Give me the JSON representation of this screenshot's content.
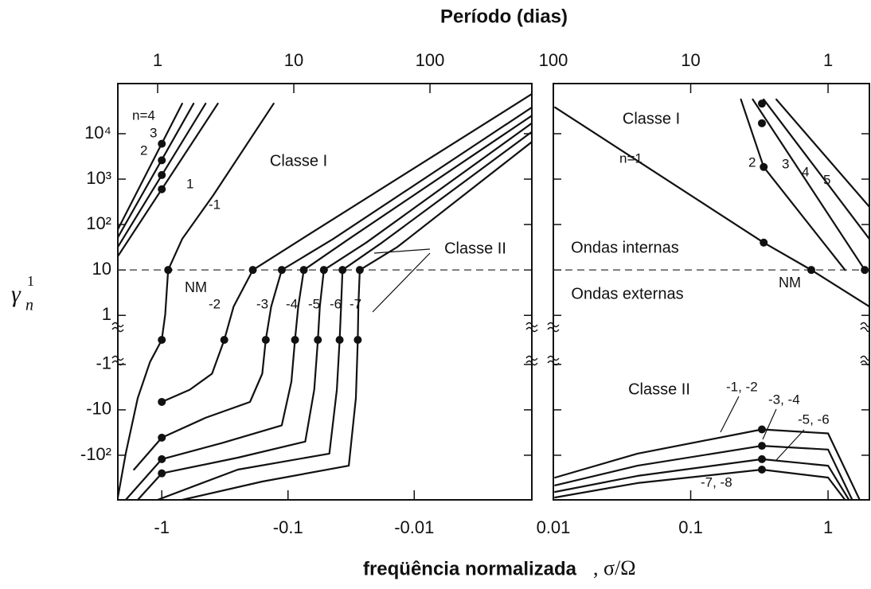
{
  "chart_data": [
    {
      "type": "line",
      "title": "Período (dias)",
      "xlabel": "freqüência normalizada",
      "xlabel_symbol": ", σ/Ω",
      "ylabel": {
        "symbol": "γ",
        "sub": "n",
        "sup": "1"
      },
      "xscale": "log",
      "yscale": "symlog",
      "x2scale": "log",
      "xlim": [
        -2.23,
        -0.00117
      ],
      "xticks": [
        -1,
        -0.1,
        -0.01
      ],
      "x2lim": [
        0.51,
        560
      ],
      "x2ticks": [
        1,
        10,
        100
      ],
      "ylim": [
        -960,
        127000
      ],
      "yticks": [
        {
          "value": 10000,
          "label": "10⁴"
        },
        {
          "value": 1000,
          "label": "10³"
        },
        {
          "value": 100,
          "label": "10²"
        },
        10,
        1,
        -1,
        -10,
        {
          "value": -100,
          "label": "-10²"
        }
      ],
      "hline": 10,
      "annotations": [
        "Classe I",
        "Classe II",
        "NM"
      ],
      "series": [
        {
          "name": "n=4",
          "color": "#111111",
          "x": [
            -2.23,
            -0.69
          ],
          "values": [
            78,
            46000
          ]
        },
        {
          "name": "3",
          "color": "#111111",
          "x": [
            -2.23,
            -0.56
          ],
          "values": [
            52,
            46000
          ]
        },
        {
          "name": "2",
          "color": "#111111",
          "x": [
            -2.23,
            -0.45
          ],
          "values": [
            32,
            46000
          ]
        },
        {
          "name": "1",
          "color": "#111111",
          "x": [
            -2.23,
            -0.36
          ],
          "values": [
            20,
            46000
          ]
        },
        {
          "name": "-1",
          "color": "#111111",
          "x": [
            -2.23,
            -1.93,
            -1.55,
            -1.24,
            -1.0,
            -0.94,
            -0.89,
            -0.69,
            -0.39,
            -0.13
          ],
          "values": [
            -850,
            -92,
            -5.5,
            -0.9,
            0,
            1.04,
            10,
            48,
            445,
            46000
          ]
        },
        {
          "name": "-2",
          "color": "#111111",
          "x": [
            -1,
            -0.6,
            -0.4,
            -0.32,
            -0.27,
            -0.19,
            -0.078,
            -0.00117
          ],
          "values": [
            -6.7,
            -3.6,
            -1.6,
            0,
            1.56,
            10,
            48,
            75000
          ]
        },
        {
          "name": "-3",
          "color": "#111111",
          "x": [
            -1.66,
            -1,
            -0.45,
            -0.2,
            -0.16,
            -0.15,
            -0.136,
            -0.112,
            -0.044,
            -0.00117
          ],
          "values": [
            -207,
            -41,
            -15,
            -6.7,
            -1.6,
            0,
            1.56,
            10,
            48,
            38000
          ]
        },
        {
          "name": "-4",
          "color": "#111111",
          "x": [
            -1.93,
            -1,
            -0.335,
            -0.112,
            -0.094,
            -0.088,
            -0.083,
            -0.075,
            -0.033,
            -0.00117
          ],
          "values": [
            -960,
            -122,
            -54,
            -22,
            -2.4,
            0,
            1.56,
            10,
            48,
            25000
          ]
        },
        {
          "name": "-5",
          "color": "#111111",
          "x": [
            -1.55,
            -1,
            -0.25,
            -0.073,
            -0.062,
            -0.058,
            -0.056,
            -0.052,
            -0.024,
            -0.00117
          ],
          "values": [
            -960,
            -250,
            -113,
            -50,
            -3.6,
            0,
            1.56,
            10,
            40,
            17000
          ]
        },
        {
          "name": "-6",
          "color": "#111111",
          "x": [
            -1.08,
            -0.25,
            -0.047,
            -0.041,
            -0.039,
            -0.038,
            -0.037,
            -0.018,
            -0.00117
          ],
          "values": [
            -960,
            -207,
            -92,
            -3.6,
            0,
            1.56,
            10,
            40,
            11000
          ]
        },
        {
          "name": "-7",
          "color": "#111111",
          "x": [
            -0.69,
            -0.16,
            -0.033,
            -0.029,
            -0.028,
            -0.0277,
            -0.027,
            -0.0136,
            -0.00117
          ],
          "values": [
            -960,
            -380,
            -170,
            -5.5,
            0,
            1.56,
            10,
            32,
            6600
          ]
        }
      ],
      "dots": {
        "color": "#111111",
        "x": [
          -1,
          -1,
          -1,
          -1,
          -1,
          -0.89,
          -1,
          -0.32,
          -0.19,
          -1,
          -0.15,
          -0.112,
          -1,
          -0.088,
          -0.075,
          -1,
          -0.058,
          -0.052,
          -0.039,
          -0.037,
          -0.028,
          -0.027
        ],
        "values": [
          6000,
          2600,
          1230,
          600,
          0,
          10,
          -6.7,
          0,
          10,
          -41,
          0,
          10,
          -122,
          0,
          10,
          -250,
          0,
          10,
          0,
          10,
          0,
          10
        ]
      }
    },
    {
      "type": "line",
      "xscale": "log",
      "yscale": "symlog",
      "x2scale": "log",
      "xlim": [
        0.01,
        2
      ],
      "xticks": [
        0.01,
        0.1,
        1
      ],
      "x2lim": [
        100,
        0.5
      ],
      "x2ticks": [
        100,
        10,
        1
      ],
      "ylim": [
        -960,
        127000
      ],
      "hline": 10,
      "annotations": [
        "Classe I",
        "Ondas internas",
        "NM",
        "Ondas externas",
        "Classe II"
      ],
      "series": [
        {
          "name": "n=1",
          "color": "#111111",
          "x": [
            0.0103,
            0.34,
            0.755,
            2.0
          ],
          "values": [
            38000,
            40,
            10,
            1.56
          ]
        },
        {
          "name": "2",
          "color": "#111111",
          "x": [
            0.232,
            0.34,
            1.33
          ],
          "values": [
            57000,
            1850,
            10
          ]
        },
        {
          "name": "3",
          "color": "#111111",
          "x": [
            0.283,
            1.85
          ],
          "values": [
            57000,
            10
          ]
        },
        {
          "name": "4",
          "color": "#111111",
          "x": [
            0.34,
            2.0
          ],
          "values": [
            57000,
            48
          ]
        },
        {
          "name": "5",
          "color": "#111111",
          "x": [
            0.42,
            2.0
          ],
          "values": [
            57000,
            245
          ]
        },
        {
          "name": "-1, -2",
          "color": "#111111",
          "x": [
            0.0103,
            0.041,
            0.33,
            1.0,
            1.7
          ],
          "values": [
            -310,
            -92,
            -27,
            -33,
            -960
          ]
        },
        {
          "name": "-3, -4",
          "color": "#111111",
          "x": [
            0.0103,
            0.041,
            0.33,
            1.0,
            1.5
          ],
          "values": [
            -460,
            -170,
            -62,
            -75,
            -960
          ]
        },
        {
          "name": "-5, -6",
          "color": "#111111",
          "x": [
            0.0103,
            0.041,
            0.33,
            1.0,
            1.42
          ],
          "values": [
            -640,
            -285,
            -122,
            -170,
            -960
          ]
        },
        {
          "name": "-7, -8",
          "color": "#111111",
          "x": [
            0.0103,
            0.041,
            0.33,
            1.0,
            1.33
          ],
          "values": [
            -850,
            -410,
            -207,
            -310,
            -960
          ]
        }
      ],
      "dots": {
        "color": "#111111",
        "x": [
          0.33,
          0.33,
          0.34,
          0.34,
          0.755,
          1.85,
          0.33,
          0.33,
          0.33,
          0.33
        ],
        "values": [
          46000,
          17000,
          1850,
          40,
          10,
          10,
          -27,
          -62,
          -122,
          -207
        ]
      }
    }
  ]
}
